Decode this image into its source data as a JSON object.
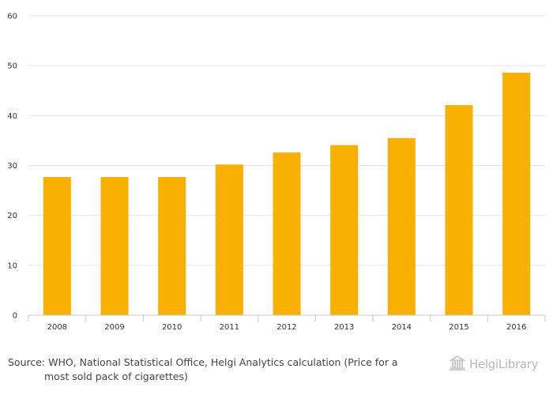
{
  "chart_data": {
    "type": "bar",
    "categories": [
      "2008",
      "2009",
      "2010",
      "2011",
      "2012",
      "2013",
      "2014",
      "2015",
      "2016"
    ],
    "values": [
      27.7,
      27.7,
      27.7,
      30.2,
      32.6,
      34.1,
      35.5,
      42.1,
      48.6
    ],
    "ylim": [
      0,
      60
    ],
    "yticks": [
      0,
      10,
      20,
      30,
      40,
      50,
      60
    ],
    "grid": true,
    "bar_color": "#f9b000",
    "title": "",
    "xlabel": "",
    "ylabel": ""
  },
  "footer": {
    "source_line1": "Source: WHO, National Statistical Office, Helgi Analytics calculation (Price for a",
    "source_line2": "most sold pack of cigarettes)",
    "brand_name": "HelgiLibrary"
  }
}
